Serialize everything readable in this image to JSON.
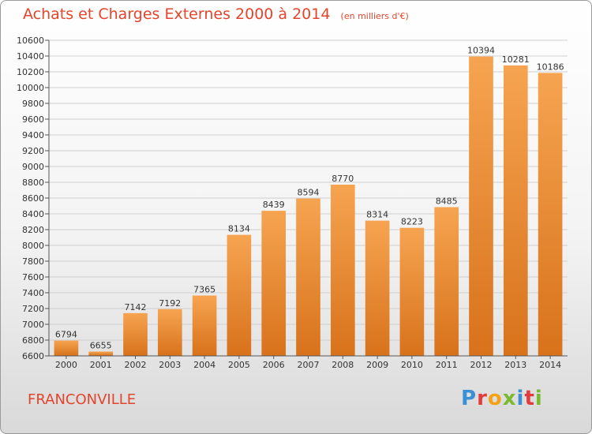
{
  "header": {
    "title": "Achats et Charges Externes 2000 à 2014",
    "subtitle": "(en milliers d'€)"
  },
  "footer": {
    "city": "FRANCONVILLE",
    "brand": "Proxiti"
  },
  "colors": {
    "accent": "#e2452c",
    "bar_top": "#f6a451",
    "bar_bottom": "#d8721b",
    "grid": "#cfcfcf"
  },
  "chart_data": {
    "type": "bar",
    "categories": [
      "2000",
      "2001",
      "2002",
      "2003",
      "2004",
      "2005",
      "2006",
      "2007",
      "2008",
      "2009",
      "2010",
      "2011",
      "2012",
      "2013",
      "2014"
    ],
    "values": [
      6794,
      6655,
      7142,
      7192,
      7365,
      8134,
      8439,
      8594,
      8770,
      8314,
      8223,
      8485,
      10394,
      10281,
      10186
    ],
    "yticks": [
      6600,
      6800,
      7000,
      7200,
      7400,
      7600,
      7800,
      8000,
      8200,
      8400,
      8600,
      8800,
      9000,
      9200,
      9400,
      9600,
      9800,
      10000,
      10200,
      10400,
      10600
    ],
    "ylim": [
      6600,
      10600
    ],
    "grid": true,
    "data_labels": true,
    "title": "Achats et Charges Externes 2000 à 2014",
    "subtitle": "(en milliers d'€)",
    "xlabel": "",
    "ylabel": ""
  }
}
